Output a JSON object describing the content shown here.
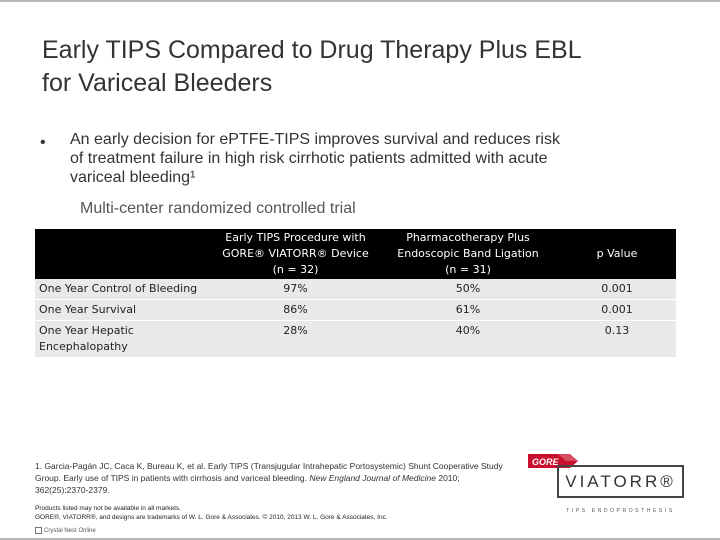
{
  "slide": {
    "title_lines": [
      "Early TIPS Compared to Drug Therapy Plus EBL",
      "for Variceal Bleeders"
    ],
    "bullet_symbol": "•",
    "bullet_lines": [
      "An early decision for ePTFE-TIPS improves survival and reduces risk",
      "of treatment failure in high risk cirrhotic patients admitted with acute",
      "variceal bleeding¹"
    ],
    "subpoint": "Multi-center randomized controlled trial"
  },
  "table": {
    "headers": [
      [
        ""
      ],
      [
        "Early TIPS Procedure with",
        "GORE® VIATORR® Device",
        "(n = 32)"
      ],
      [
        "Pharmacotherapy Plus",
        "Endoscopic Band Ligation",
        "(n = 31)"
      ],
      [
        "p Value"
      ]
    ],
    "rows": [
      {
        "label_lines": [
          "One Year Control of Bleeding"
        ],
        "tips": "97%",
        "pharma": "50%",
        "p": "0.001"
      },
      {
        "label_lines": [
          "One Year Survival"
        ],
        "tips": "86%",
        "pharma": "61%",
        "p": "0.001"
      },
      {
        "label_lines": [
          "One Year Hepatic",
          "Encephalopathy"
        ],
        "tips": "28%",
        "pharma": "40%",
        "p": "0.13"
      }
    ]
  },
  "footnote": {
    "text": "1. Garcia-Pagán JC, Caca K, Bureau K, et al. Early TIPS (Transjugular Intrahepatic Portosystemic) Shunt Cooperative Study Group. Early use of TIPS in patients with cirrhosis and variceal bleeding. ",
    "journal": "New England Journal of Medicine",
    "citation": " 2010; 362(25):2370-2379."
  },
  "legal": {
    "line1": "Products listed may not be available in all markets.",
    "line2": "GORE®, VIATORR®, and designs are trademarks of W. L. Gore & Associates. © 2010, 2013 W. L. Gore & Associates, Inc."
  },
  "cc_text": "Crystal Nest Online",
  "logo": {
    "gore": "GORE",
    "brand": "VIATORR®",
    "tagline": "TIPS ENDOPROSTHESIS",
    "colors": {
      "gore_red": "#c8102e",
      "frame": "#444444"
    }
  }
}
